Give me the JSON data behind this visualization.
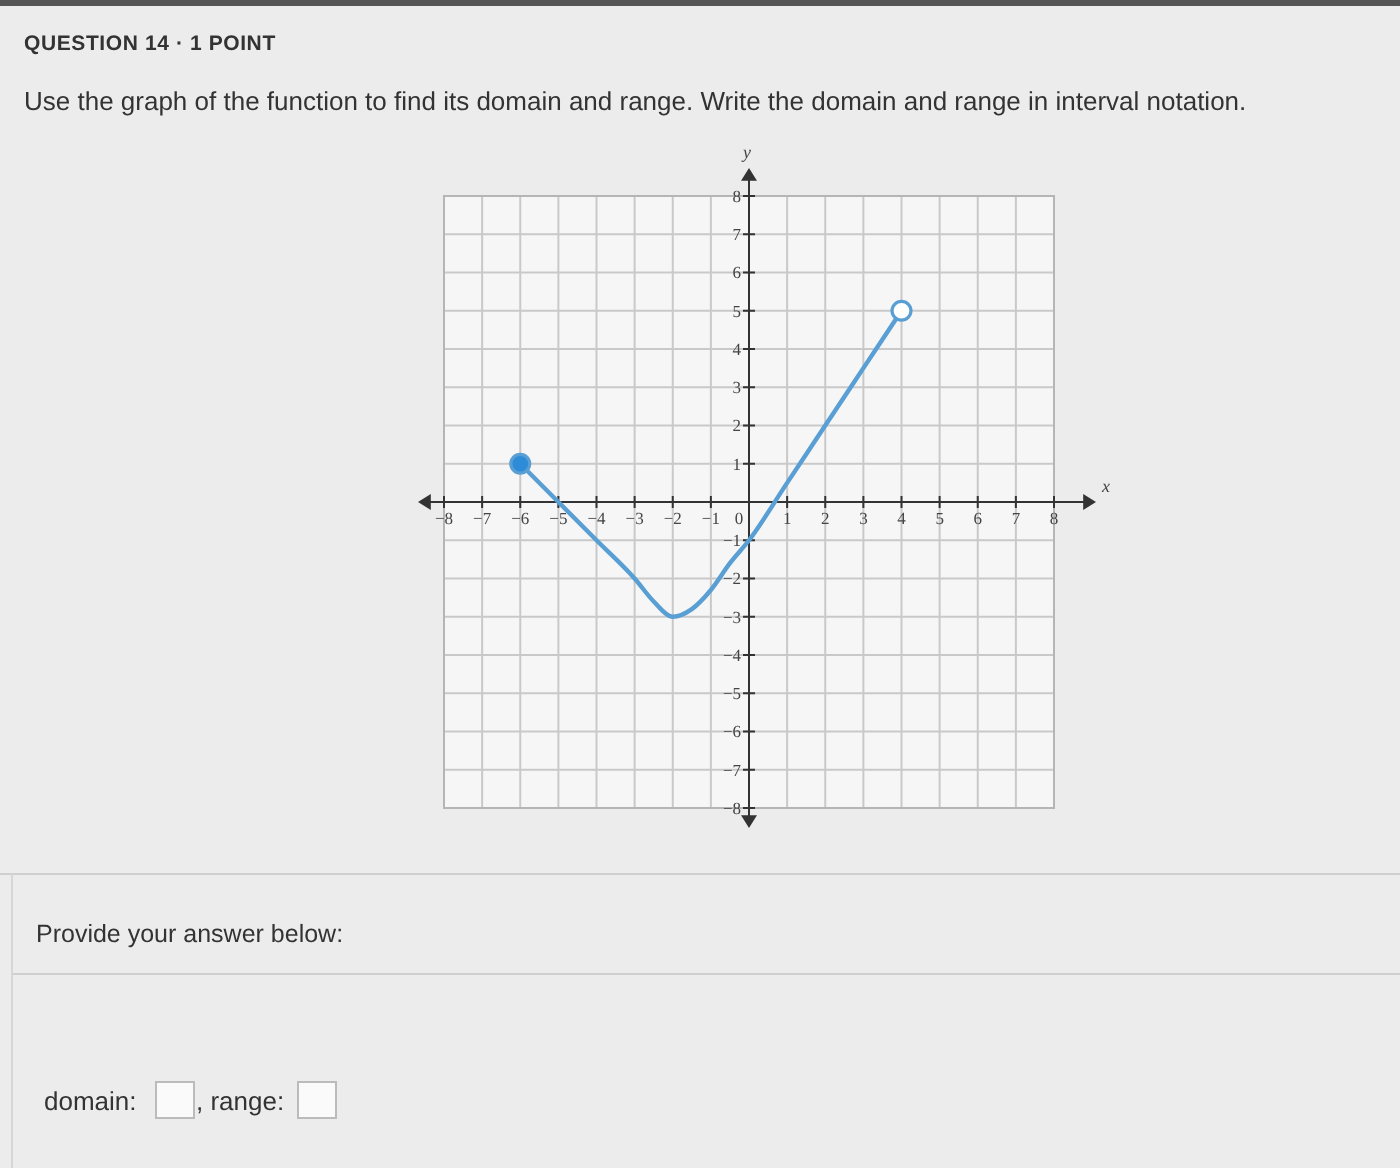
{
  "chart_data": {
    "type": "line",
    "title": "Use the graph of the function to find its domain and range. Write the domain and range in interval notation.",
    "annotations": [
      "QUESTION 14 · 1 POINT",
      "Provide your answer below:",
      "domain:",
      ", range:"
    ],
    "xlabel": "x",
    "ylabel": "y",
    "xlim": [
      -8,
      8
    ],
    "ylim": [
      -8,
      8
    ],
    "xticks": [
      -8,
      -7,
      -6,
      -5,
      -4,
      -3,
      -2,
      -1,
      0,
      1,
      2,
      3,
      4,
      5,
      6,
      7,
      8
    ],
    "yticks": [
      -8,
      -7,
      -6,
      -5,
      -4,
      -3,
      -2,
      -1,
      1,
      2,
      3,
      4,
      5,
      6,
      7,
      8
    ],
    "grid": true,
    "series": [
      {
        "color": "#5a9fd4",
        "x": [
          -6,
          -5,
          -4,
          -3,
          -2.5,
          -2,
          -1.5,
          -1,
          -0.5,
          0,
          1,
          2,
          3,
          4
        ],
        "values": [
          1,
          0,
          -1,
          -2,
          -2.6,
          -3,
          -2.8,
          -2.3,
          -1.6,
          -1,
          0.5,
          2,
          3.5,
          5
        ]
      },
      {
        "type": "scatter",
        "marker": "circle",
        "color": "#2e8bd8",
        "x": [
          -6
        ],
        "values": [
          1
        ]
      },
      {
        "type": "scatter",
        "marker": "circle",
        "color": "#ffffff",
        "x": [
          4
        ],
        "values": [
          5
        ]
      }
    ]
  }
}
